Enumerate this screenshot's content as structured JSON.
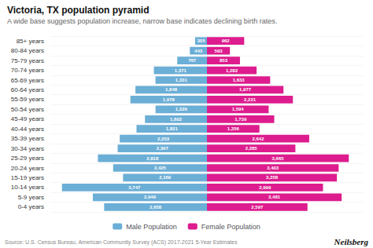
{
  "chart_data": {
    "type": "bar",
    "orientation": "horizontal",
    "title": "Victoria, TX population pyramid",
    "subtitle": "A wide base suggests population increase, narrow base indicates declining birth rates.",
    "annotations": [
      "Source: U.S. Census Bureau, American Community Survey (ACS) 2017-2021 5-Year Estimates",
      "Neilsberg"
    ],
    "categories": [
      "0-4 years",
      "5-9 years",
      "10-14 years",
      "15-19 years",
      "20-24 years",
      "25-29 years",
      "30-34 years",
      "35-39 years",
      "40-44 years",
      "45-49 years",
      "50-54 years",
      "55-59 years",
      "60-64 years",
      "65-69 years",
      "70-74 years",
      "75-79 years",
      "80-84 years",
      "85+ years"
    ],
    "series": [
      {
        "name": "Male Population",
        "color": "#6baed6",
        "values": [
          2658,
          2949,
          3747,
          2169,
          2425,
          2818,
          2307,
          2253,
          1821,
          1602,
          1329,
          1978,
          1848,
          1331,
          1371,
          767,
          443,
          305
        ],
        "value_labels": [
          "2,658",
          "2,949",
          "3,747",
          "2,169",
          "2,425",
          "2,818",
          "2,307",
          "2,253",
          "1,821",
          "1,602",
          "1,329",
          "1,978",
          "1,848",
          "1,331",
          "1,371",
          "767",
          "443",
          "305"
        ]
      },
      {
        "name": "Female Population",
        "color": "#dd1c8e",
        "values": [
          2597,
          3481,
          2999,
          3358,
          3403,
          3665,
          2285,
          2642,
          1356,
          1739,
          1594,
          2221,
          1977,
          1633,
          1282,
          853,
          593,
          962
        ],
        "value_labels": [
          "2,597",
          "3,481",
          "2,999",
          "3,358",
          "3,403",
          "3,665",
          "2,285",
          "2,642",
          "1,356",
          "1,739",
          "1,594",
          "2,221",
          "1,977",
          "1,633",
          "1,282",
          "853",
          "593",
          "962"
        ]
      }
    ],
    "xlim": [
      0,
      4046.76
    ],
    "data_labels": true,
    "tick_labels": "y",
    "grid": true,
    "legend": "bottom"
  }
}
